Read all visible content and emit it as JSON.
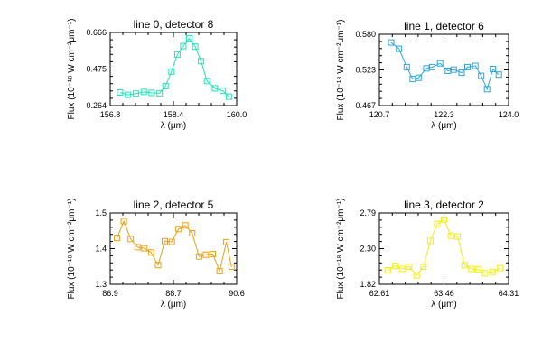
{
  "chart_data": [
    {
      "type": "line",
      "title": "line 0, detector 8",
      "xlabel": "λ (μm)",
      "ylabel": "Flux (10⁻¹⁸ W cm⁻²μm⁻¹)",
      "xlim": [
        156.8,
        160.0
      ],
      "ylim": [
        0.264,
        0.666
      ],
      "xticks": [
        "156.8",
        "158.4",
        "160.0"
      ],
      "yticks": [
        "0.264",
        "0.475",
        "0.666"
      ],
      "color": "#1fe3b8",
      "series": [
        {
          "x": [
            157.05,
            157.25,
            157.45,
            157.65,
            157.85,
            158.05,
            158.2,
            158.35,
            158.5,
            158.65,
            158.8,
            158.95,
            159.1,
            159.25,
            159.45,
            159.65,
            159.8
          ],
          "values": [
            0.336,
            0.323,
            0.33,
            0.339,
            0.334,
            0.332,
            0.371,
            0.451,
            0.545,
            0.591,
            0.633,
            0.588,
            0.508,
            0.399,
            0.359,
            0.345,
            0.313
          ]
        }
      ]
    },
    {
      "type": "line",
      "title": "line 1, detector 6",
      "xlabel": "λ (μm)",
      "ylabel": "Flux (10⁻¹⁸ W cm⁻²μm⁻¹)",
      "xlim": [
        120.7,
        124.0
      ],
      "ylim": [
        0.467,
        0.58
      ],
      "xticks": [
        "120.7",
        "122.3",
        "124.0"
      ],
      "yticks": [
        "0.467",
        "0.523",
        "0.580"
      ],
      "color": "#2aa7d8",
      "series": [
        {
          "x": [
            121.0,
            121.2,
            121.4,
            121.55,
            121.7,
            121.9,
            122.05,
            122.25,
            122.45,
            122.6,
            122.8,
            122.95,
            123.15,
            123.3,
            123.45,
            123.6,
            123.75
          ],
          "values": [
            0.567,
            0.557,
            0.528,
            0.509,
            0.511,
            0.526,
            0.528,
            0.534,
            0.522,
            0.524,
            0.519,
            0.528,
            0.53,
            0.514,
            0.493,
            0.525,
            0.516
          ]
        }
      ]
    },
    {
      "type": "line",
      "title": "line 2, detector 5",
      "xlabel": "λ (μm)",
      "ylabel": "Flux (10⁻¹⁸ W cm⁻²μm⁻¹)",
      "xlim": [
        86.9,
        90.6
      ],
      "ylim": [
        1.3,
        1.5
      ],
      "xticks": [
        "86.9",
        "88.7",
        "90.6"
      ],
      "yticks": [
        "1.3",
        "1.4",
        "1.5"
      ],
      "color": "#e8a012",
      "series": [
        {
          "x": [
            87.1,
            87.3,
            87.5,
            87.7,
            87.9,
            88.1,
            88.3,
            88.5,
            88.7,
            88.9,
            89.1,
            89.3,
            89.5,
            89.7,
            89.9,
            90.1,
            90.3,
            90.45
          ],
          "values": [
            1.43,
            1.477,
            1.427,
            1.404,
            1.401,
            1.389,
            1.354,
            1.421,
            1.419,
            1.455,
            1.465,
            1.443,
            1.378,
            1.383,
            1.385,
            1.337,
            1.418,
            1.349
          ]
        }
      ]
    },
    {
      "type": "line",
      "title": "line 3, detector 2",
      "xlabel": "λ (μm)",
      "ylabel": "Flux (10⁻¹⁸ W cm⁻²μm⁻¹)",
      "xlim": [
        62.61,
        64.31
      ],
      "ylim": [
        1.82,
        2.79
      ],
      "xticks": [
        "62.61",
        "63.46",
        "64.31"
      ],
      "yticks": [
        "1.82",
        "2.30",
        "2.79"
      ],
      "color": "#f2ec18",
      "series": [
        {
          "x": [
            62.72,
            62.82,
            62.91,
            63.0,
            63.1,
            63.19,
            63.28,
            63.37,
            63.46,
            63.55,
            63.64,
            63.73,
            63.82,
            63.91,
            64.0,
            64.1,
            64.2
          ],
          "values": [
            2.01,
            2.07,
            2.03,
            2.06,
            1.94,
            2.06,
            2.41,
            2.64,
            2.7,
            2.48,
            2.47,
            2.08,
            2.03,
            2.02,
            1.97,
            1.99,
            2.04
          ]
        }
      ]
    }
  ]
}
